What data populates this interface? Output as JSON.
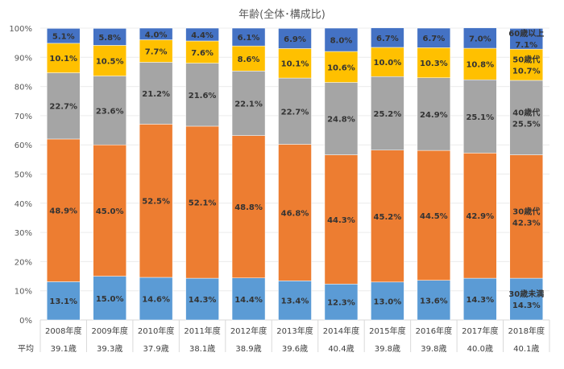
{
  "chart_data": {
    "type": "bar",
    "stacked": true,
    "title": "年齢(全体･構成比)",
    "categories": [
      "2008年度",
      "2009年度",
      "2010年度",
      "2011年度",
      "2012年度",
      "2013年度",
      "2014年度",
      "2015年度",
      "2016年度",
      "2017年度",
      "2018年度"
    ],
    "series": [
      {
        "name": "30歳未満",
        "color": "#5B9BD5",
        "values": [
          13.1,
          15.0,
          14.6,
          14.3,
          14.4,
          13.4,
          12.3,
          13.0,
          13.6,
          14.3,
          14.3
        ]
      },
      {
        "name": "30歳代",
        "color": "#ED7D31",
        "values": [
          48.9,
          45.0,
          52.5,
          52.1,
          48.8,
          46.8,
          44.3,
          45.2,
          44.5,
          42.9,
          42.3
        ]
      },
      {
        "name": "40歳代",
        "color": "#A5A5A5",
        "values": [
          22.7,
          23.6,
          21.2,
          21.6,
          22.1,
          22.7,
          24.8,
          25.2,
          24.9,
          25.1,
          25.5
        ]
      },
      {
        "name": "50歳代",
        "color": "#FFC000",
        "values": [
          10.1,
          10.5,
          7.7,
          7.6,
          8.6,
          10.1,
          10.6,
          10.0,
          10.3,
          10.8,
          10.7
        ]
      },
      {
        "name": "60歳以上",
        "color": "#4472C4",
        "values": [
          5.1,
          5.8,
          4.0,
          4.4,
          6.1,
          6.9,
          8.0,
          6.7,
          6.7,
          7.0,
          7.1
        ]
      }
    ],
    "ylim": [
      0,
      100
    ],
    "yticks": [
      "0%",
      "10%",
      "20%",
      "30%",
      "40%",
      "50%",
      "60%",
      "70%",
      "80%",
      "90%",
      "100%"
    ],
    "grid": true,
    "legend": "inline labels on last bar",
    "table": {
      "row_label": "平均",
      "values": [
        "39.1歳",
        "39.3歳",
        "37.9歳",
        "38.1歳",
        "38.9歳",
        "39.6歳",
        "40.4歳",
        "39.8歳",
        "39.8歳",
        "40.0歳",
        "40.1歳"
      ]
    }
  }
}
